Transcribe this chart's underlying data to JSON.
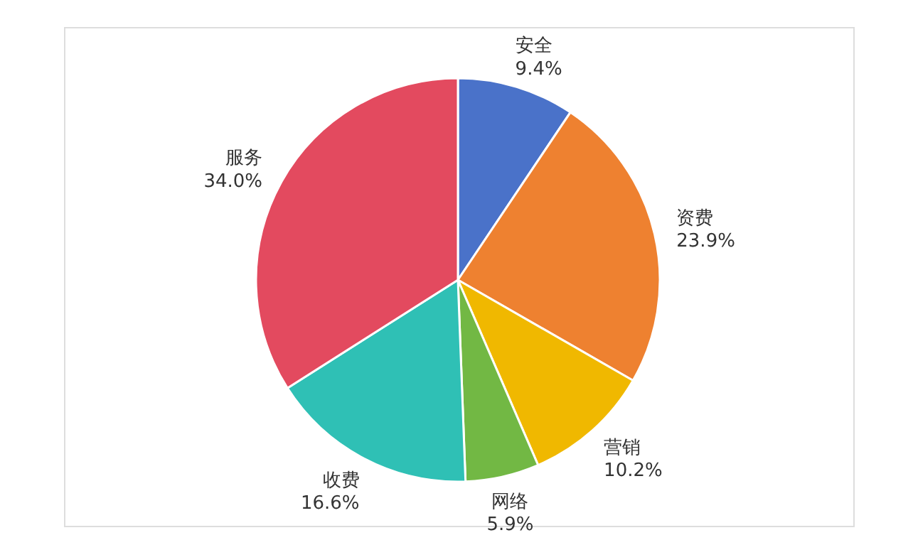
{
  "chart_data": {
    "type": "pie",
    "categories": [
      "安全",
      "资费",
      "营销",
      "网络",
      "收费",
      "服务"
    ],
    "values": [
      9.4,
      23.9,
      10.2,
      5.9,
      16.6,
      34.0
    ],
    "value_labels": [
      "9.4%",
      "23.9%",
      "10.2%",
      "5.9%",
      "16.6%",
      "34.0%"
    ],
    "colors": [
      "#4a72c9",
      "#ee8130",
      "#f0b800",
      "#72b844",
      "#2fc0b5",
      "#e34a5f"
    ]
  }
}
